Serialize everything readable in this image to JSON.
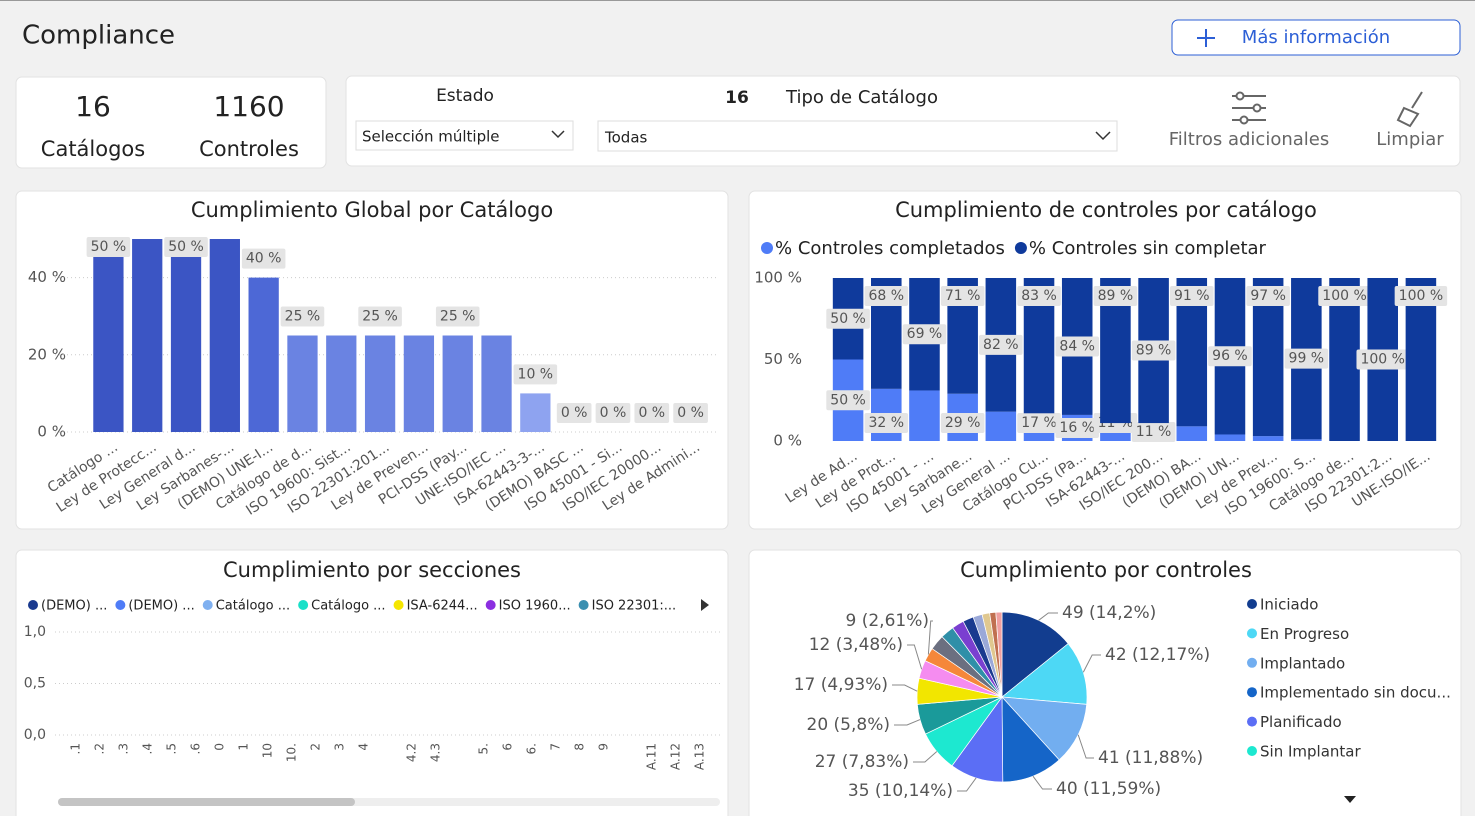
{
  "header": {
    "title": "Compliance",
    "button": "Más información"
  },
  "kpis": [
    {
      "value": "16",
      "label": "Catálogos"
    },
    {
      "value": "1160",
      "label": "Controles"
    }
  ],
  "filters": {
    "estado_label": "Estado",
    "estado_value": "Selección múltiple",
    "count": "16",
    "tipo_label": "Tipo de Catálogo",
    "tipo_value": "Todas",
    "more": "Filtros adicionales",
    "clear": "Limpiar"
  },
  "chart_data": [
    {
      "type": "bar",
      "title": "Cumplimiento Global por Catálogo",
      "categories": [
        "Catálogo ...",
        "Ley de Protecc...",
        "Ley General d...",
        "Ley Sarbanes-...",
        "(DEMO) UNE-I...",
        "Catálogo de d...",
        "ISO 19600: Sist...",
        "ISO 22301:201...",
        "Ley de Preven...",
        "PCI-DSS (Pay...",
        "UNE-ISO/IEC ...",
        "ISA-62443-3-...",
        "(DEMO) BASC ...",
        "ISO 45001 - Si...",
        "ISO/IEC 20000...",
        "Ley de Admini..."
      ],
      "values": [
        50,
        50,
        50,
        50,
        40,
        25,
        25,
        25,
        25,
        25,
        25,
        10,
        0,
        0,
        0,
        0
      ],
      "value_labels": [
        "50 %",
        null,
        "50 %",
        null,
        "40 %",
        "25 %",
        null,
        "25 %",
        null,
        "25 %",
        null,
        "10 %",
        "0 %",
        "0 %",
        "0 %",
        "0 %"
      ],
      "colors": [
        "#3b55c4",
        "#3b55c4",
        "#3b55c4",
        "#3b55c4",
        "#4d68d6",
        "#6a83e2",
        "#6a83e2",
        "#6a83e2",
        "#6a83e2",
        "#6a83e2",
        "#6a83e2",
        "#8ea3f0",
        "#8ea3f0",
        "#8ea3f0",
        "#8ea3f0",
        "#8ea3f0"
      ],
      "ylim": [
        0,
        50
      ],
      "yticks": [
        {
          "value": 0,
          "label": "0 %"
        },
        {
          "value": 20,
          "label": "20 %"
        },
        {
          "value": 40,
          "label": "40 %"
        }
      ],
      "grid": true
    },
    {
      "type": "stacked_bar",
      "title": "Cumplimiento de controles por catálogo",
      "categories": [
        "Ley de Ad...",
        "Ley de Prot...",
        "ISO 45001 - ...",
        "Ley Sarbane...",
        "Ley General ...",
        "Catálogo Cu...",
        "PCI-DSS (Pa...",
        "ISA-62443-...",
        "ISO/IEC 200...",
        "(DEMO) BA...",
        "(DEMO) UN...",
        "Ley de Prev...",
        "ISO 19600: S...",
        "Catálogo de...",
        "ISO 22301:2...",
        "UNE-ISO/IE..."
      ],
      "series": [
        {
          "name": "% Controles completados",
          "color": "#4f7cf7",
          "values": [
            50,
            32,
            31,
            29,
            18,
            17,
            16,
            11,
            11,
            9,
            4,
            3,
            1,
            0,
            0,
            0
          ],
          "value_labels": [
            "50 %",
            "32 %",
            null,
            "29 %",
            null,
            "17 %",
            "16 %",
            "11 %",
            "11 %",
            null,
            null,
            null,
            null,
            null,
            null,
            null
          ]
        },
        {
          "name": "% Controles  sin completar",
          "color": "#0f3a9c",
          "values": [
            50,
            68,
            69,
            71,
            82,
            83,
            84,
            89,
            89,
            91,
            96,
            97,
            99,
            100,
            100,
            100
          ],
          "value_labels": [
            "50 %",
            "68 %",
            "69 %",
            "71 %",
            "82 %",
            "83 %",
            "84 %",
            "89 %",
            "89 %",
            "91 %",
            "96 %",
            "97 %",
            "99 %",
            "100 %",
            "100 %",
            "100 %"
          ]
        }
      ],
      "ylim": [
        0,
        100
      ],
      "yticks": [
        {
          "value": 0,
          "label": "0 %"
        },
        {
          "value": 50,
          "label": "50 %"
        },
        {
          "value": 100,
          "label": "100 %"
        }
      ]
    },
    {
      "type": "line",
      "title": "Cumplimiento por secciones",
      "categories": [
        ".1",
        ".2",
        ".3",
        ".4",
        ".5",
        ".6",
        "0",
        "1",
        "10",
        "10.",
        "2",
        "3",
        "4",
        null,
        "4.2",
        "4.3",
        null,
        "5.",
        "6",
        "6.",
        "7",
        "8",
        "9",
        null,
        "A.11",
        "A.12",
        "A.13"
      ],
      "series": [
        {
          "name": "(DEMO) ...",
          "color": "#1a3a8f"
        },
        {
          "name": "(DEMO) ...",
          "color": "#4f7cf7"
        },
        {
          "name": "Catálogo ...",
          "color": "#7fb0f0"
        },
        {
          "name": "Catálogo ...",
          "color": "#19e0c8"
        },
        {
          "name": "ISA-6244...",
          "color": "#f5e600"
        },
        {
          "name": "ISO 1960...",
          "color": "#8b2fe0"
        },
        {
          "name": "ISO 22301:...",
          "color": "#3a8fb0"
        }
      ],
      "ylim": [
        0,
        1
      ],
      "yticks": [
        {
          "value": 0,
          "label": "0,0"
        },
        {
          "value": 0.5,
          "label": "0,5"
        },
        {
          "value": 1,
          "label": "1,0"
        }
      ],
      "grid": true
    },
    {
      "type": "pie",
      "title": "Cumplimiento por controles",
      "categories": [
        "Iniciado",
        "En Progreso",
        "Implantado",
        "Implementado sin docu...",
        "Planificado",
        "Sin Implantar",
        null,
        null,
        null,
        null,
        null,
        null,
        null,
        null,
        null,
        null,
        null,
        null
      ],
      "values": [
        49,
        42,
        41,
        40,
        35,
        27,
        20,
        17,
        12,
        9,
        10,
        9,
        8,
        7,
        6,
        5,
        4,
        4
      ],
      "value_labels": [
        "49 (14,2%)",
        "42 (12,17%)",
        "41 (11,88%)",
        "40 (11,59%)",
        "35 (10,14%)",
        "27 (7,83%)",
        "20 (5,8%)",
        "17 (4,93%)",
        "12 (3,48%)",
        "9 (2,61%)",
        null,
        null,
        null,
        null,
        null,
        null,
        null,
        null
      ],
      "colors": [
        "#123d8f",
        "#4dd8f5",
        "#72aef0",
        "#1565c8",
        "#5b6ef5",
        "#1de8d0",
        "#1a9a9a",
        "#f2e600",
        "#f58cf0",
        "#f5873a",
        "#6b6f80",
        "#2f8fa8",
        "#7a3fd0",
        "#1a3a8f",
        "#9aa8d8",
        "#e0c890",
        "#c07050",
        "#f0a0a0"
      ]
    }
  ]
}
